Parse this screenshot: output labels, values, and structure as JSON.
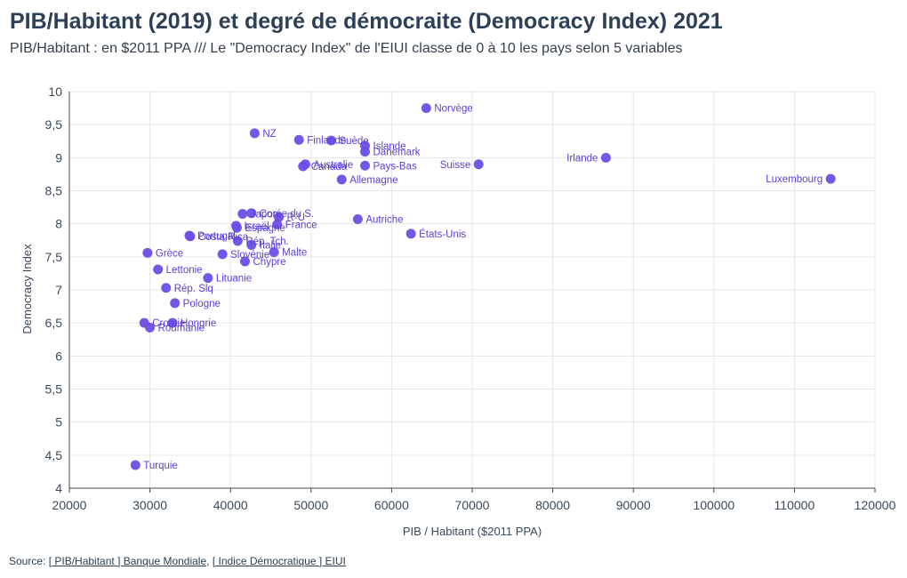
{
  "header": {
    "title": "PIB/Habitant (2019) et degré de démocraite (Democracy Index) 2021",
    "subtitle": "PIB/Habitant : en $2011 PPA /// Le \"Democracy Index\" de l'EIUI classe de 0 à 10 les pays selon 5 variables"
  },
  "source": {
    "prefix": "Source: ",
    "link1": "[ PIB/Habitant ] Banque Mondiale",
    "separator": ", ",
    "link2": "[ Indice Démocratique ] EIUI"
  },
  "colors": {
    "point": "#6b4ee6",
    "label": "#5b3fd6",
    "grid": "#e6e6e6"
  },
  "chart_data": {
    "type": "scatter",
    "xlabel": "PIB / Habitant ($2011 PPA)",
    "ylabel": "Democracy Index",
    "xlim": [
      20000,
      120000
    ],
    "ylim": [
      4,
      10
    ],
    "xticks": [
      20000,
      30000,
      40000,
      50000,
      60000,
      70000,
      80000,
      90000,
      100000,
      110000,
      120000
    ],
    "xtick_labels": [
      "20000",
      "30000",
      "40000",
      "50000",
      "60000",
      "70000",
      "80000",
      "90000",
      "100000",
      "110000",
      "120000"
    ],
    "yticks": [
      4,
      4.5,
      5,
      5.5,
      6,
      6.5,
      7,
      7.5,
      8,
      8.5,
      9,
      9.5,
      10
    ],
    "ytick_labels": [
      "4",
      "4,5",
      "5",
      "5,5",
      "6",
      "6,5",
      "7",
      "7,5",
      "8",
      "8,5",
      "9",
      "9,5",
      "10"
    ],
    "grid": true,
    "points": [
      {
        "label": "Norvège",
        "x": 64300,
        "y": 9.75
      },
      {
        "label": "NZ",
        "x": 43000,
        "y": 9.37
      },
      {
        "label": "Finlande",
        "x": 48500,
        "y": 9.27
      },
      {
        "label": "Suède",
        "x": 52500,
        "y": 9.26
      },
      {
        "label": "Islande",
        "x": 56700,
        "y": 9.18
      },
      {
        "label": "Danemark",
        "x": 56700,
        "y": 9.09
      },
      {
        "label": "Australie",
        "x": 49300,
        "y": 8.9
      },
      {
        "label": "Canada",
        "x": 49000,
        "y": 8.87
      },
      {
        "label": "Pays-Bas",
        "x": 56700,
        "y": 8.88
      },
      {
        "label": "Suisse",
        "x": 70800,
        "y": 8.9
      },
      {
        "label": "Irlande",
        "x": 86600,
        "y": 9.0
      },
      {
        "label": "Luxembourg",
        "x": 114500,
        "y": 8.68
      },
      {
        "label": "Allemagne",
        "x": 53800,
        "y": 8.67
      },
      {
        "label": "Japon",
        "x": 41500,
        "y": 8.15
      },
      {
        "label": "Corée du S.",
        "x": 42600,
        "y": 8.16
      },
      {
        "label": "R-U",
        "x": 46000,
        "y": 8.1
      },
      {
        "label": "France",
        "x": 45800,
        "y": 7.99
      },
      {
        "label": "Autriche",
        "x": 55800,
        "y": 8.07
      },
      {
        "label": "Espagne",
        "x": 40800,
        "y": 7.94
      },
      {
        "label": "Israël",
        "x": 40700,
        "y": 7.97
      },
      {
        "label": "Portugal",
        "x": 34900,
        "y": 7.82
      },
      {
        "label": "Costa Rica",
        "x": 35000,
        "y": 7.81
      },
      {
        "label": "Rép. Tch.",
        "x": 40900,
        "y": 7.74
      },
      {
        "label": "Italie",
        "x": 42600,
        "y": 7.68
      },
      {
        "label": "Malte",
        "x": 45400,
        "y": 7.57
      },
      {
        "label": "Slovénie",
        "x": 39000,
        "y": 7.54
      },
      {
        "label": "Chypre",
        "x": 41800,
        "y": 7.43
      },
      {
        "label": "États-Unis",
        "x": 62400,
        "y": 7.85
      },
      {
        "label": "Grèce",
        "x": 29700,
        "y": 7.56
      },
      {
        "label": "Lettonie",
        "x": 31000,
        "y": 7.31
      },
      {
        "label": "Lituanie",
        "x": 37200,
        "y": 7.18
      },
      {
        "label": "Rép. Slq",
        "x": 32000,
        "y": 7.03
      },
      {
        "label": "Pologne",
        "x": 33100,
        "y": 6.8
      },
      {
        "label": "Croatie",
        "x": 29300,
        "y": 6.5
      },
      {
        "label": "Hongrie",
        "x": 32800,
        "y": 6.5
      },
      {
        "label": "Roumanie",
        "x": 30000,
        "y": 6.43
      },
      {
        "label": "Turquie",
        "x": 28200,
        "y": 4.35
      }
    ]
  }
}
